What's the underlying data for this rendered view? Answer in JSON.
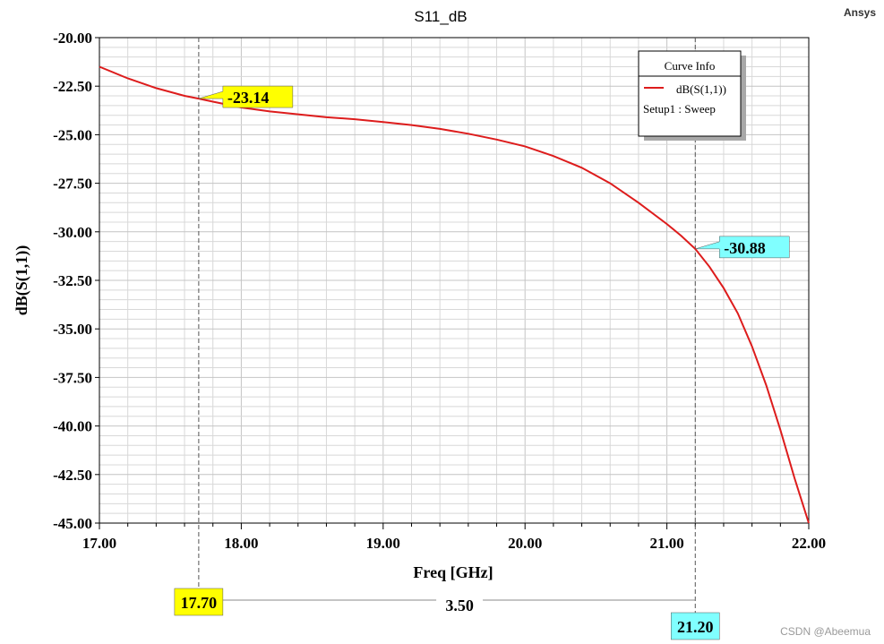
{
  "app": {
    "brand": "Ansys",
    "watermark": "CSDN @Abeemua"
  },
  "colors": {
    "curve": "#dd1c1c",
    "marker1": "#ffff00",
    "marker2": "#80ffff",
    "grid": "#d8d8d8",
    "grid_major": "#c4c4c4"
  },
  "legend": {
    "title": "Curve Info",
    "entries": [
      {
        "label": "dB(S(1,1))",
        "color": "#dd1c1c"
      }
    ],
    "sub": "Setup1 : Sweep",
    "placement": "top-right"
  },
  "markers": [
    {
      "freq": 17.7,
      "value": -23.14,
      "value_label": "-23.14",
      "freq_label": "17.70",
      "color": "#ffff00"
    },
    {
      "freq": 21.2,
      "value": -30.88,
      "value_label": "-30.88",
      "freq_label": "21.20",
      "color": "#80ffff"
    }
  ],
  "delta": {
    "label": "3.50"
  },
  "chart_data": {
    "type": "line",
    "title": "S11_dB",
    "xlabel": "Freq [GHz]",
    "ylabel": "dB(S(1,1))",
    "xlim": [
      17.0,
      22.0
    ],
    "ylim": [
      -45.0,
      -20.0
    ],
    "x_ticks": [
      "17.00",
      "18.00",
      "19.00",
      "20.00",
      "21.00",
      "22.00"
    ],
    "y_ticks": [
      "-20.00",
      "-22.50",
      "-25.00",
      "-27.50",
      "-30.00",
      "-32.50",
      "-35.00",
      "-37.50",
      "-40.00",
      "-42.50",
      "-45.00"
    ],
    "grid": true,
    "series": [
      {
        "name": "dB(S(1,1))",
        "x": [
          17.0,
          17.2,
          17.4,
          17.6,
          17.7,
          17.8,
          18.0,
          18.2,
          18.4,
          18.6,
          18.8,
          19.0,
          19.2,
          19.4,
          19.6,
          19.8,
          20.0,
          20.2,
          20.4,
          20.6,
          20.8,
          21.0,
          21.1,
          21.2,
          21.3,
          21.4,
          21.5,
          21.6,
          21.7,
          21.8,
          21.9,
          22.0
        ],
        "y": [
          -21.5,
          -22.1,
          -22.6,
          -23.0,
          -23.14,
          -23.3,
          -23.6,
          -23.8,
          -23.95,
          -24.1,
          -24.2,
          -24.35,
          -24.5,
          -24.7,
          -24.95,
          -25.25,
          -25.6,
          -26.1,
          -26.7,
          -27.5,
          -28.5,
          -29.6,
          -30.2,
          -30.88,
          -31.8,
          -32.9,
          -34.2,
          -35.9,
          -37.9,
          -40.2,
          -42.7,
          -45.0
        ]
      }
    ]
  }
}
